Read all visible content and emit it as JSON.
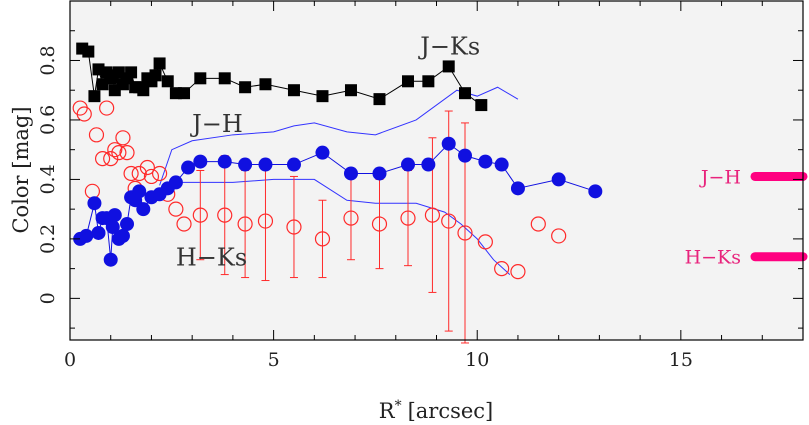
{
  "chart_data": {
    "type": "scatter",
    "title": "",
    "xlabel": "R",
    "xlabel_sup": "*",
    "xlabel_unit": "[arcsec]",
    "ylabel": "Color [mag]",
    "xlim": [
      0,
      18
    ],
    "ylim": [
      -0.14,
      1.0
    ],
    "xticks": [
      0,
      5,
      10,
      15
    ],
    "yticks": [
      0,
      0.2,
      0.4,
      0.6,
      0.8
    ],
    "background": "#f3f3f3",
    "grid": false,
    "series": [
      {
        "name": "J−Ks",
        "marker": "square",
        "color": "#000000",
        "connected": true,
        "x": [
          0.3,
          0.45,
          0.6,
          0.7,
          0.8,
          0.9,
          1.0,
          1.05,
          1.1,
          1.2,
          1.3,
          1.4,
          1.5,
          1.6,
          1.7,
          1.8,
          1.9,
          2.0,
          2.1,
          2.2,
          2.4,
          2.6,
          2.8,
          3.2,
          3.8,
          4.3,
          4.8,
          5.5,
          6.2,
          6.9,
          7.6,
          8.3,
          8.8,
          9.3,
          9.7,
          10.1
        ],
        "y": [
          0.84,
          0.83,
          0.68,
          0.77,
          0.72,
          0.76,
          0.74,
          0.75,
          0.7,
          0.76,
          0.72,
          0.74,
          0.76,
          0.71,
          0.71,
          0.7,
          0.74,
          0.73,
          0.75,
          0.79,
          0.73,
          0.69,
          0.69,
          0.74,
          0.74,
          0.71,
          0.72,
          0.7,
          0.68,
          0.7,
          0.67,
          0.73,
          0.73,
          0.78,
          0.69,
          0.65
        ]
      },
      {
        "name": "J−H",
        "marker": "open-circle",
        "color": "#ff2a2a",
        "connected": false,
        "x": [
          0.25,
          0.35,
          0.55,
          0.65,
          0.8,
          0.9,
          1.0,
          1.1,
          1.2,
          1.3,
          1.4,
          1.5,
          1.6,
          1.7,
          1.9,
          2.0,
          2.2,
          2.4,
          2.6,
          2.8,
          3.2,
          3.8,
          4.3,
          4.8,
          5.5,
          6.2,
          6.9,
          7.6,
          8.3,
          8.9,
          9.3,
          9.7,
          10.2,
          10.6,
          11.0,
          11.5,
          12.0
        ],
        "y": [
          0.64,
          0.62,
          0.36,
          0.55,
          0.47,
          0.64,
          0.47,
          0.5,
          0.49,
          0.54,
          0.49,
          0.42,
          0.37,
          0.42,
          0.44,
          0.41,
          0.42,
          0.35,
          0.3,
          0.25,
          0.28,
          0.28,
          0.25,
          0.26,
          0.24,
          0.2,
          0.27,
          0.25,
          0.27,
          0.28,
          0.26,
          0.22,
          0.19,
          0.1,
          0.09,
          0.25,
          0.21
        ],
        "err_x": [
          3.2,
          3.8,
          4.3,
          4.8,
          5.5,
          6.2,
          6.9,
          7.6,
          8.3,
          8.9,
          9.3,
          9.7
        ],
        "err_lo": [
          0.15,
          0.2,
          0.18,
          0.2,
          0.17,
          0.13,
          0.14,
          0.15,
          0.16,
          0.26,
          0.37,
          0.37
        ],
        "err_hi": [
          0.15,
          0.2,
          0.18,
          0.2,
          0.17,
          0.13,
          0.14,
          0.15,
          0.16,
          0.26,
          0.37,
          0.37
        ]
      },
      {
        "name": "H−Ks",
        "marker": "filled-circle",
        "color": "#1010e0",
        "connected": true,
        "x": [
          0.25,
          0.4,
          0.6,
          0.7,
          0.8,
          0.9,
          1.0,
          1.05,
          1.1,
          1.2,
          1.3,
          1.4,
          1.5,
          1.6,
          1.7,
          1.8,
          2.0,
          2.2,
          2.4,
          2.6,
          2.9,
          3.2,
          3.8,
          4.3,
          4.8,
          5.5,
          6.2,
          6.9,
          7.6,
          8.3,
          8.8,
          9.3,
          9.7,
          10.2,
          10.6,
          11.0,
          12.0,
          12.9
        ],
        "y": [
          0.2,
          0.21,
          0.32,
          0.22,
          0.27,
          0.27,
          0.13,
          0.24,
          0.28,
          0.2,
          0.21,
          0.25,
          0.34,
          0.33,
          0.36,
          0.3,
          0.34,
          0.35,
          0.37,
          0.39,
          0.44,
          0.46,
          0.46,
          0.45,
          0.45,
          0.45,
          0.49,
          0.42,
          0.42,
          0.45,
          0.45,
          0.52,
          0.48,
          0.46,
          0.45,
          0.37,
          0.4,
          0.36
        ]
      },
      {
        "name": "J−H model",
        "marker": "line",
        "color": "#3333ff",
        "connected": true,
        "x": [
          2.2,
          2.5,
          3.0,
          4.0,
          5.0,
          5.5,
          6.0,
          6.8,
          7.5,
          8.5,
          9.5,
          10.0,
          10.5,
          11.0
        ],
        "y": [
          0.38,
          0.5,
          0.53,
          0.55,
          0.56,
          0.58,
          0.59,
          0.56,
          0.55,
          0.6,
          0.7,
          0.68,
          0.71,
          0.67
        ]
      },
      {
        "name": "H−Ks model",
        "marker": "line",
        "color": "#3333ff",
        "connected": true,
        "x": [
          2.2,
          2.5,
          3.0,
          4.0,
          5.0,
          5.5,
          6.0,
          6.8,
          7.5,
          8.5,
          9.2,
          9.6,
          10.0,
          10.4,
          10.8
        ],
        "y": [
          0.33,
          0.39,
          0.39,
          0.39,
          0.4,
          0.4,
          0.4,
          0.33,
          0.32,
          0.32,
          0.29,
          0.25,
          0.2,
          0.13,
          0.08
        ]
      }
    ],
    "annotations": [
      {
        "text": "J−Ks",
        "x": 8.6,
        "y": 0.82
      },
      {
        "text": "J−H",
        "x": 3.0,
        "y": 0.56
      },
      {
        "text": "H−Ks",
        "x": 2.6,
        "y": 0.11
      }
    ],
    "side_markers": [
      {
        "text": "J−H",
        "y": 0.41,
        "color": "#ff0080"
      },
      {
        "text": "H−Ks",
        "y": 0.14,
        "color": "#ff0080"
      }
    ]
  }
}
